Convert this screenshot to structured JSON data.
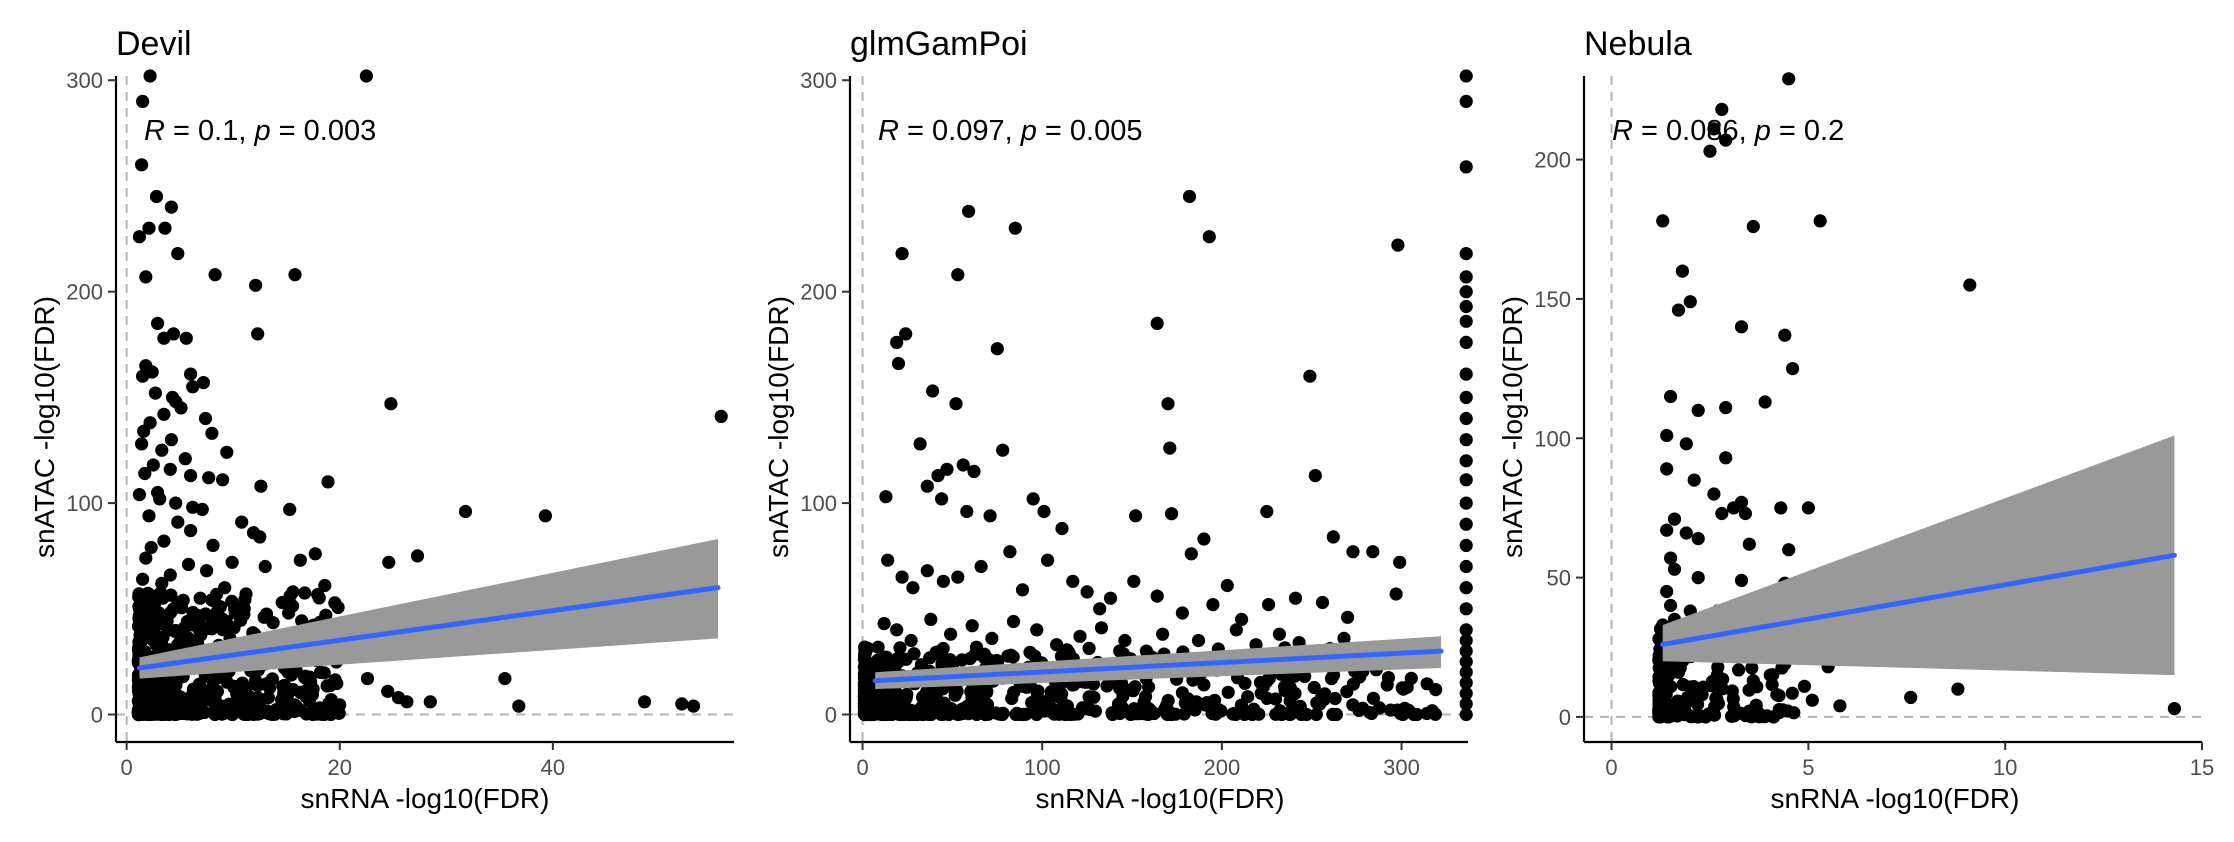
{
  "chart_data": [
    {
      "type": "scatter",
      "title": "Devil",
      "xlabel": "snRNA -log10(FDR)",
      "ylabel": "snATAC -log10(FDR)",
      "annotation": {
        "r_symbol": "R",
        "r_text": " = 0.1, ",
        "p_symbol": "p",
        "p_text": " = 0.003"
      },
      "xlim": [
        -1,
        57
      ],
      "ylim": [
        -13,
        302
      ],
      "xticks": [
        0,
        20,
        40
      ],
      "yticks": [
        0,
        100,
        200,
        300
      ],
      "ref_x": 0,
      "ref_y": 0,
      "fit": {
        "x0": 1.2,
        "y0": 22,
        "x1": 55.5,
        "y1": 60,
        "ci_lo0": 17,
        "ci_lo1": 36,
        "ci_hi0": 27,
        "ci_hi1": 83
      },
      "points": [
        [
          2.2,
          302
        ],
        [
          22.5,
          302
        ],
        [
          1.5,
          290
        ],
        [
          1.4,
          260
        ],
        [
          2.8,
          245
        ],
        [
          4.2,
          240
        ],
        [
          3.6,
          230
        ],
        [
          2.1,
          230
        ],
        [
          1.2,
          226
        ],
        [
          4.8,
          218
        ],
        [
          8.3,
          208
        ],
        [
          15.8,
          208
        ],
        [
          1.8,
          207
        ],
        [
          12.1,
          203
        ],
        [
          2.9,
          185
        ],
        [
          4.4,
          180
        ],
        [
          3.5,
          178
        ],
        [
          12.3,
          180
        ],
        [
          5.6,
          178
        ],
        [
          1.8,
          165
        ],
        [
          2.4,
          162
        ],
        [
          6.0,
          161
        ],
        [
          1.5,
          160
        ],
        [
          7.2,
          157
        ],
        [
          6.2,
          155
        ],
        [
          2.7,
          152
        ],
        [
          4.3,
          150
        ],
        [
          4.6,
          148
        ],
        [
          5.1,
          145
        ],
        [
          3.5,
          142
        ],
        [
          7.4,
          140
        ],
        [
          2.2,
          138
        ],
        [
          24.8,
          147
        ],
        [
          1.6,
          134
        ],
        [
          8.0,
          133
        ],
        [
          4.2,
          130
        ],
        [
          1.4,
          128
        ],
        [
          9.4,
          124
        ],
        [
          3.3,
          125
        ],
        [
          5.5,
          121
        ],
        [
          2.5,
          118
        ],
        [
          4.1,
          116
        ],
        [
          1.7,
          114
        ],
        [
          6.0,
          113
        ],
        [
          7.7,
          112
        ],
        [
          9.0,
          111
        ],
        [
          12.6,
          108
        ],
        [
          18.9,
          110
        ],
        [
          2.9,
          105
        ],
        [
          1.2,
          104
        ],
        [
          3.1,
          102
        ],
        [
          4.6,
          100
        ],
        [
          6.2,
          98
        ],
        [
          7.1,
          97
        ],
        [
          15.3,
          97
        ],
        [
          31.8,
          96
        ],
        [
          39.3,
          94
        ],
        [
          2.1,
          94
        ],
        [
          4.8,
          91
        ],
        [
          10.8,
          91
        ],
        [
          11.9,
          86
        ],
        [
          12.5,
          84
        ],
        [
          6.0,
          87
        ],
        [
          3.5,
          82
        ],
        [
          8.1,
          80
        ],
        [
          2.3,
          79
        ],
        [
          27.3,
          75
        ],
        [
          17.7,
          76
        ],
        [
          9.9,
          72
        ],
        [
          16.3,
          73
        ],
        [
          24.6,
          72
        ],
        [
          1.8,
          74
        ],
        [
          5.8,
          71
        ],
        [
          13.0,
          70
        ],
        [
          7.5,
          68
        ],
        [
          4.1,
          66
        ],
        [
          1.5,
          64
        ],
        [
          3.3,
          62
        ],
        [
          9.2,
          60
        ],
        [
          11.2,
          57
        ],
        [
          15.6,
          58
        ],
        [
          18.6,
          61
        ],
        [
          14.6,
          53
        ],
        [
          6.9,
          55
        ],
        [
          2.6,
          52
        ],
        [
          4.4,
          50
        ],
        [
          8.8,
          51
        ],
        [
          10.2,
          48
        ],
        [
          12.9,
          46
        ],
        [
          15.2,
          48
        ],
        [
          1.6,
          46
        ],
        [
          5.7,
          44
        ],
        [
          7.9,
          42
        ],
        [
          3.9,
          40
        ],
        [
          2.2,
          38
        ],
        [
          9.7,
          36
        ],
        [
          13.5,
          34
        ],
        [
          15.9,
          37
        ],
        [
          16.9,
          39
        ],
        [
          1.3,
          34
        ],
        [
          4.8,
          33
        ],
        [
          7.1,
          30
        ],
        [
          11.4,
          32
        ],
        [
          2.8,
          28
        ],
        [
          6.2,
          26
        ],
        [
          9.5,
          24
        ],
        [
          14.8,
          22
        ],
        [
          1.9,
          24
        ],
        [
          3.8,
          21
        ],
        [
          5.3,
          18
        ],
        [
          8.4,
          17
        ],
        [
          12.1,
          16
        ],
        [
          22.6,
          17
        ],
        [
          35.5,
          17
        ],
        [
          1.4,
          15
        ],
        [
          3.1,
          14
        ],
        [
          6.7,
          13
        ],
        [
          10.3,
          12
        ],
        [
          17.5,
          12
        ],
        [
          24.5,
          11
        ],
        [
          4.4,
          10
        ],
        [
          7.6,
          9
        ],
        [
          13.3,
          8
        ],
        [
          19.2,
          7
        ],
        [
          25.5,
          8
        ],
        [
          26.3,
          6
        ],
        [
          28.5,
          6
        ],
        [
          1.7,
          8
        ],
        [
          2.9,
          6
        ],
        [
          5.4,
          5
        ],
        [
          8.9,
          4
        ],
        [
          11.6,
          5
        ],
        [
          14.9,
          4
        ],
        [
          18.1,
          3
        ],
        [
          36.8,
          4
        ],
        [
          48.6,
          6
        ],
        [
          52.1,
          5
        ],
        [
          53.2,
          4
        ],
        [
          55.8,
          141
        ],
        [
          2.4,
          3
        ],
        [
          3.7,
          2
        ],
        [
          6.1,
          3
        ],
        [
          9.8,
          2
        ],
        [
          16.3,
          2
        ],
        [
          1.3,
          2
        ],
        [
          4.9,
          1
        ],
        [
          7.3,
          1
        ],
        [
          12.8,
          1
        ]
      ],
      "dense": {
        "x": [
          1.1,
          20
        ],
        "y": [
          0,
          58
        ],
        "n": 520,
        "seed": 11
      }
    },
    {
      "type": "scatter",
      "title": "glmGamPoi",
      "xlabel": "snRNA -log10(FDR)",
      "ylabel": "snATAC -log10(FDR)",
      "annotation": {
        "r_symbol": "R",
        "r_text": " = 0.097, ",
        "p_symbol": "p",
        "p_text": " = 0.005"
      },
      "xlim": [
        -7,
        337
      ],
      "ylim": [
        -13,
        302
      ],
      "xticks": [
        0,
        100,
        200,
        300
      ],
      "yticks": [
        0,
        100,
        200,
        300
      ],
      "ref_x": 0,
      "ref_y": 0,
      "fit": {
        "x0": 7,
        "y0": 16,
        "x1": 322,
        "y1": 30,
        "ci_lo0": 12,
        "ci_lo1": 22,
        "ci_hi0": 20,
        "ci_hi1": 37
      },
      "points": [
        [
          59,
          238
        ],
        [
          85,
          230
        ],
        [
          182,
          245
        ],
        [
          22,
          218
        ],
        [
          193,
          226
        ],
        [
          298,
          222
        ],
        [
          53,
          208
        ],
        [
          24,
          180
        ],
        [
          19,
          176
        ],
        [
          20,
          166
        ],
        [
          75,
          173
        ],
        [
          164,
          185
        ],
        [
          249,
          160
        ],
        [
          39,
          153
        ],
        [
          52,
          147
        ],
        [
          78,
          125
        ],
        [
          170,
          147
        ],
        [
          171,
          126
        ],
        [
          13,
          103
        ],
        [
          42,
          113
        ],
        [
          32,
          128
        ],
        [
          47,
          116
        ],
        [
          56,
          118
        ],
        [
          62,
          115
        ],
        [
          36,
          108
        ],
        [
          44,
          102
        ],
        [
          58,
          96
        ],
        [
          71,
          94
        ],
        [
          95,
          102
        ],
        [
          101,
          96
        ],
        [
          111,
          88
        ],
        [
          152,
          94
        ],
        [
          172,
          95
        ],
        [
          183,
          76
        ],
        [
          190,
          83
        ],
        [
          225,
          96
        ],
        [
          252,
          113
        ],
        [
          262,
          84
        ],
        [
          273,
          77
        ],
        [
          284,
          77
        ],
        [
          299,
          72
        ],
        [
          14,
          73
        ],
        [
          22,
          65
        ],
        [
          28,
          60
        ],
        [
          36,
          68
        ],
        [
          45,
          63
        ],
        [
          53,
          65
        ],
        [
          66,
          70
        ],
        [
          82,
          77
        ],
        [
          89,
          59
        ],
        [
          103,
          73
        ],
        [
          117,
          63
        ],
        [
          125,
          58
        ],
        [
          132,
          50
        ],
        [
          138,
          55
        ],
        [
          151,
          63
        ],
        [
          164,
          56
        ],
        [
          178,
          48
        ],
        [
          195,
          52
        ],
        [
          203,
          61
        ],
        [
          211,
          45
        ],
        [
          226,
          52
        ],
        [
          241,
          55
        ],
        [
          256,
          53
        ],
        [
          270,
          46
        ],
        [
          297,
          57
        ],
        [
          12,
          43
        ],
        [
          19,
          40
        ],
        [
          27,
          35
        ],
        [
          38,
          45
        ],
        [
          49,
          38
        ],
        [
          61,
          42
        ],
        [
          72,
          36
        ],
        [
          84,
          44
        ],
        [
          97,
          40
        ],
        [
          108,
          33
        ],
        [
          121,
          37
        ],
        [
          133,
          41
        ],
        [
          146,
          35
        ],
        [
          158,
          30
        ],
        [
          167,
          38
        ],
        [
          187,
          35
        ],
        [
          198,
          31
        ],
        [
          208,
          40
        ],
        [
          219,
          33
        ],
        [
          232,
          38
        ],
        [
          243,
          34
        ],
        [
          257,
          27
        ],
        [
          268,
          36
        ],
        [
          281,
          30
        ],
        [
          309,
          32
        ],
        [
          315,
          27
        ],
        [
          166,
          24
        ],
        [
          197,
          21
        ],
        [
          233,
          19
        ],
        [
          261,
          17
        ],
        [
          292,
          14
        ],
        [
          301,
          12
        ]
      ],
      "dense": {
        "x": [
          1,
          320
        ],
        "y": [
          0,
          32
        ],
        "n": 620,
        "seed": 23
      },
      "edge": {
        "x": 336,
        "ys": [
          302,
          290,
          259,
          218,
          207,
          200,
          193,
          186,
          176,
          161,
          150,
          140,
          130,
          120,
          111,
          100,
          90,
          80,
          70,
          60,
          50,
          40,
          35,
          30,
          25,
          20,
          15,
          10,
          5,
          0
        ]
      }
    },
    {
      "type": "scatter",
      "title": "Nebula",
      "xlabel": "snRNA -log10(FDR)",
      "ylabel": "snATAC -log10(FDR)",
      "annotation": {
        "r_symbol": "R",
        "r_text": " = 0.086, ",
        "p_symbol": "p",
        "p_text": " = 0.2"
      },
      "xlim": [
        -0.7,
        15
      ],
      "ylim": [
        -9,
        230
      ],
      "xticks": [
        0,
        5,
        10,
        15
      ],
      "yticks": [
        0,
        50,
        100,
        150,
        200
      ],
      "ref_x": 0,
      "ref_y": 0,
      "fit": {
        "x0": 1.3,
        "y0": 26,
        "x1": 14.3,
        "y1": 58,
        "ci_lo0": 20,
        "ci_lo1": 15,
        "ci_hi0": 33,
        "ci_hi1": 101
      },
      "points": [
        [
          4.5,
          229
        ],
        [
          2.8,
          218
        ],
        [
          2.6,
          211
        ],
        [
          2.9,
          207
        ],
        [
          2.5,
          203
        ],
        [
          1.3,
          178
        ],
        [
          5.3,
          178
        ],
        [
          3.6,
          176
        ],
        [
          1.8,
          160
        ],
        [
          2.0,
          149
        ],
        [
          1.7,
          146
        ],
        [
          9.1,
          155
        ],
        [
          3.3,
          140
        ],
        [
          4.4,
          137
        ],
        [
          3.9,
          113
        ],
        [
          4.6,
          125
        ],
        [
          1.5,
          115
        ],
        [
          2.9,
          111
        ],
        [
          2.2,
          110
        ],
        [
          1.4,
          101
        ],
        [
          1.9,
          98
        ],
        [
          1.4,
          89
        ],
        [
          2.1,
          85
        ],
        [
          2.9,
          93
        ],
        [
          2.6,
          80
        ],
        [
          3.1,
          75
        ],
        [
          3.3,
          77
        ],
        [
          4.3,
          75
        ],
        [
          5.0,
          75
        ],
        [
          1.6,
          71
        ],
        [
          2.8,
          73
        ],
        [
          3.4,
          73
        ],
        [
          1.4,
          67
        ],
        [
          1.9,
          66
        ],
        [
          2.2,
          64
        ],
        [
          3.5,
          62
        ],
        [
          4.5,
          60
        ],
        [
          1.5,
          57
        ],
        [
          1.6,
          53
        ],
        [
          2.2,
          50
        ],
        [
          3.3,
          49
        ],
        [
          4.4,
          48
        ],
        [
          1.4,
          45
        ],
        [
          1.5,
          40
        ],
        [
          2.0,
          38
        ],
        [
          2.7,
          38
        ],
        [
          3.7,
          37
        ],
        [
          4.2,
          40
        ],
        [
          1.6,
          35
        ],
        [
          1.3,
          33
        ],
        [
          2.1,
          32
        ],
        [
          3.2,
          30
        ],
        [
          4.6,
          33
        ],
        [
          1.4,
          26
        ],
        [
          2.5,
          24
        ],
        [
          3.9,
          22
        ],
        [
          4.4,
          19
        ],
        [
          5.5,
          18
        ],
        [
          1.7,
          16
        ],
        [
          2.7,
          14
        ],
        [
          3.6,
          13
        ],
        [
          4.9,
          11
        ],
        [
          1.3,
          9
        ],
        [
          2.3,
          8
        ],
        [
          4.2,
          8
        ],
        [
          5.1,
          6
        ],
        [
          7.6,
          7
        ],
        [
          8.8,
          10
        ],
        [
          5.8,
          4
        ],
        [
          14.3,
          3
        ]
      ],
      "dense": {
        "x": [
          1.2,
          4.8
        ],
        "y": [
          0,
          32
        ],
        "n": 170,
        "seed": 37
      }
    }
  ]
}
